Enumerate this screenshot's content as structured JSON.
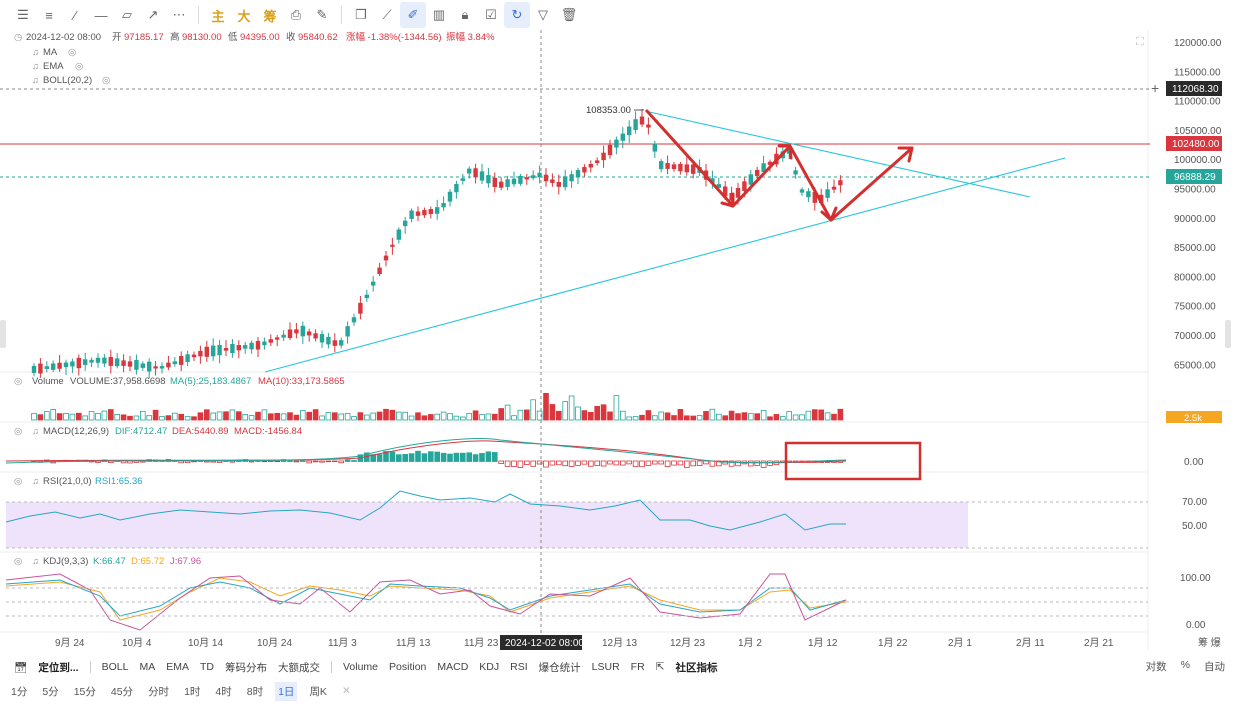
{
  "toolbar": {
    "icons": [
      "menu-icon",
      "layers-icon",
      "trendline-icon",
      "horizontal-line-icon",
      "shape-icon",
      "arrow-tool-icon",
      "more-icon"
    ],
    "indicators": [
      "主",
      "大",
      "筹"
    ],
    "tools2": [
      "copy-icon",
      "ruler-icon",
      "draw-icon",
      "candle-type-icon",
      "lock-icon",
      "note-icon",
      "magnet-icon",
      "filter-icon",
      "trash-icon"
    ]
  },
  "header": {
    "date": "2024-12-02 08:00",
    "open_label": "开",
    "open": "97185.17",
    "high_label": "高",
    "high": "98130.00",
    "low_label": "低",
    "low": "94395.00",
    "close_label": "收",
    "close": "95840.62",
    "change": "涨幅 -1.38%(-1344.56)",
    "amplitude": "振幅 3.84%"
  },
  "overlays": [
    "MA",
    "EMA",
    "BOLL(20,2)"
  ],
  "price_axis": [
    "120000.00",
    "115000.00",
    "110000.00",
    "105000.00",
    "100000.00",
    "95000.00",
    "90000.00",
    "85000.00",
    "80000.00",
    "75000.00",
    "70000.00",
    "65000.00"
  ],
  "price_tags": {
    "crosshair": "112068.30",
    "resistance": "102480.00",
    "last": "96888.29",
    "peak_label": "108353.00"
  },
  "volume": {
    "title": "Volume",
    "vol": "VOLUME:37,958.6698",
    "ma5": "MA(5):25,183.4867",
    "ma10": "MA(10):33,173.5865",
    "axis": "2.5k"
  },
  "macd": {
    "title": "MACD(12,26,9)",
    "dif": "DIF:4712.47",
    "dea": "DEA:5440.89",
    "macd": "MACD:-1456.84",
    "axis": "0.00"
  },
  "rsi": {
    "title": "RSI(21,0,0)",
    "value": "RSI1:65.36",
    "axis": [
      "70.00",
      "50.00"
    ]
  },
  "kdj": {
    "title": "KDJ(9,3,3)",
    "k": "K:66.47",
    "d": "D:65.72",
    "j": "J:67.96",
    "axis": [
      "100.00",
      "0.00"
    ]
  },
  "time_axis": [
    "9月 24",
    "10月 4",
    "10月 14",
    "10月 24",
    "11月 3",
    "11月 13",
    "11月 23",
    "12月 13",
    "12月 23",
    "1月 2",
    "1月 12",
    "1月 22",
    "2月 1",
    "2月 11",
    "2月 21"
  ],
  "time_crosshair": "2024-12-02 08:00",
  "time_axis_corner": "筹  爆",
  "bottom_bar": {
    "locate": "定位到...",
    "items": [
      "BOLL",
      "MA",
      "EMA",
      "TD",
      "筹码分布",
      "大额成交"
    ],
    "items2": [
      "Volume",
      "Position",
      "MACD",
      "KDJ",
      "RSI",
      "爆仓统计",
      "LSUR",
      "FR"
    ],
    "community": "社区指标",
    "right": [
      "对数",
      "%",
      "自动"
    ]
  },
  "timeframes": [
    "1分",
    "5分",
    "15分",
    "45分",
    "分时",
    "1时",
    "4时",
    "8时",
    "1日",
    "周K"
  ],
  "active_timeframe": "1日",
  "colors": {
    "up": "#26a69a",
    "down": "#d9363e",
    "annotation": "#d32f2f",
    "trend": "#26c6da",
    "rsi_band": "#efe3fb"
  }
}
